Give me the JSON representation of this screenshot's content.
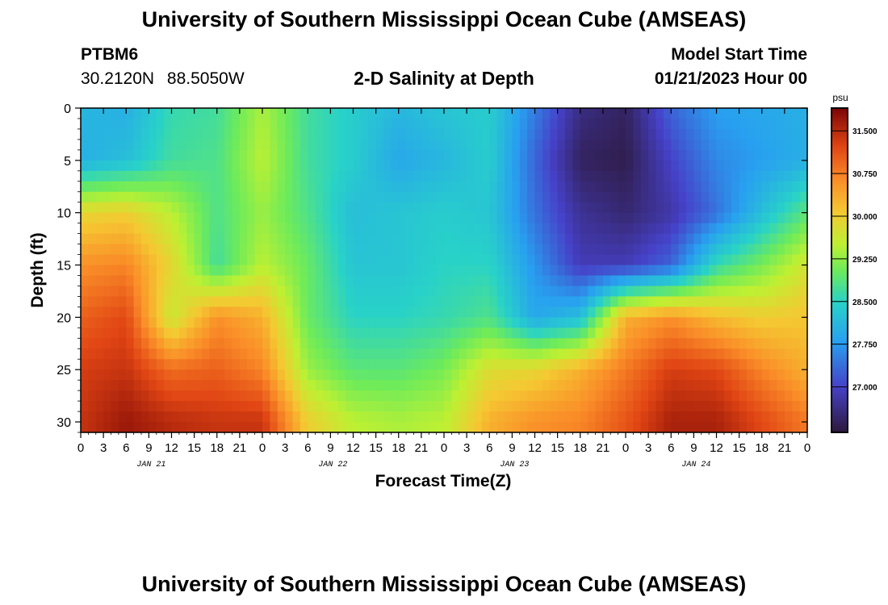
{
  "header": {
    "title": "University of Southern Mississippi Ocean Cube (AMSEAS)",
    "station": "PTBM6",
    "lat": "30.2120N",
    "lon": "88.5050W",
    "plot_title": "2-D Salinity at Depth",
    "model_label": "Model Start Time",
    "model_time": "01/21/2023 Hour 00"
  },
  "footer": {
    "title": "University of Southern Mississippi Ocean Cube (AMSEAS)"
  },
  "chart_data": {
    "type": "heatmap",
    "title": "2-D Salinity at Depth",
    "xlabel": "Forecast Time(Z)",
    "ylabel": "Depth (ft)",
    "x_tick_labels": [
      "0",
      "3",
      "6",
      "9",
      "12",
      "15",
      "18",
      "21",
      "0",
      "3",
      "6",
      "9",
      "12",
      "15",
      "18",
      "21",
      "0",
      "3",
      "6",
      "9",
      "12",
      "15",
      "18",
      "21",
      "0",
      "3",
      "6",
      "9",
      "12",
      "15",
      "18",
      "21",
      "0"
    ],
    "day_labels": [
      {
        "label": "JAN 21",
        "hour": 9
      },
      {
        "label": "JAN 22",
        "hour": 33
      },
      {
        "label": "JAN 23",
        "hour": 57
      },
      {
        "label": "JAN 24",
        "hour": 81
      }
    ],
    "x_range_hours": [
      0,
      96
    ],
    "y_range_ft": [
      0,
      31
    ],
    "y_ticks": [
      0,
      5,
      10,
      15,
      20,
      25,
      30
    ],
    "colorbar": {
      "unit": "psu",
      "range": [
        26.2,
        31.9
      ],
      "tick_labels": [
        "31.500",
        "30.750",
        "30.000",
        "29.250",
        "28.500",
        "27.750",
        "27.000"
      ],
      "tick_values": [
        31.5,
        30.75,
        30.0,
        29.25,
        28.5,
        27.75,
        27.0
      ]
    },
    "hours": [
      0,
      6,
      12,
      18,
      24,
      30,
      36,
      42,
      48,
      54,
      60,
      66,
      72,
      78,
      84,
      90,
      96
    ],
    "depths_ft": [
      0,
      5,
      10,
      15,
      20,
      25,
      30
    ],
    "salinity_psu": [
      [
        28.1,
        28.0,
        28.6,
        28.7,
        29.4,
        28.7,
        28.4,
        28.1,
        28.3,
        28.4,
        27.5,
        26.6,
        26.4,
        27.3,
        27.8,
        27.9,
        28.0
      ],
      [
        28.0,
        28.2,
        28.7,
        28.8,
        29.5,
        28.7,
        28.4,
        27.9,
        28.1,
        28.4,
        27.3,
        26.4,
        26.3,
        27.0,
        27.6,
        27.8,
        28.0
      ],
      [
        29.9,
        30.0,
        29.5,
        28.8,
        29.3,
        28.8,
        28.2,
        28.3,
        28.4,
        28.3,
        27.4,
        26.7,
        26.5,
        26.8,
        27.4,
        28.2,
        28.9
      ],
      [
        30.6,
        30.7,
        29.9,
        28.7,
        29.5,
        29.0,
        28.3,
        28.3,
        28.5,
        28.5,
        27.7,
        26.9,
        26.9,
        27.3,
        28.6,
        29.1,
        29.7
      ],
      [
        31.0,
        31.2,
        29.6,
        30.6,
        30.3,
        29.0,
        28.5,
        28.5,
        28.6,
        28.8,
        27.9,
        28.2,
        30.3,
        30.6,
        30.2,
        30.0,
        30.1
      ],
      [
        31.3,
        31.4,
        30.9,
        31.0,
        30.7,
        29.3,
        28.9,
        28.9,
        29.1,
        29.8,
        29.9,
        30.3,
        30.8,
        31.3,
        31.2,
        30.7,
        30.3
      ],
      [
        31.4,
        31.7,
        31.5,
        31.4,
        31.4,
        30.0,
        29.5,
        29.4,
        29.5,
        30.3,
        30.6,
        30.7,
        31.1,
        31.6,
        31.6,
        31.2,
        30.8
      ]
    ]
  }
}
